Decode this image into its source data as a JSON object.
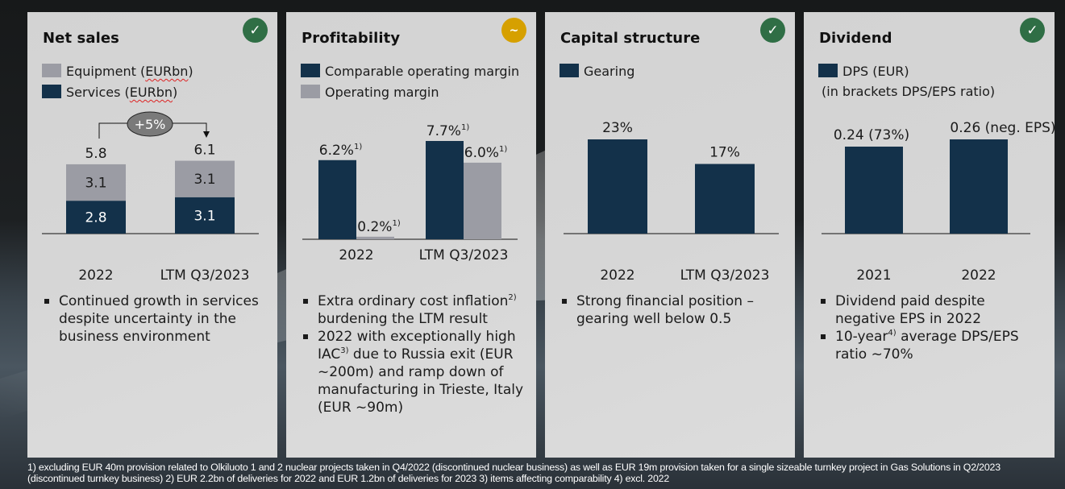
{
  "colors": {
    "dark_navy": "#13314a",
    "grey": "#9b9ca4",
    "status_ok": "#2f6e45",
    "status_warn": "#d6a000"
  },
  "panels": {
    "net_sales": {
      "title": "Net sales",
      "status": {
        "icon": "check-icon",
        "glyph": "✓"
      },
      "legend": [
        {
          "label_pre": "Equipment (",
          "label_sq": "EURbn",
          "label_post": ")",
          "swatch": "grey"
        },
        {
          "label_pre": "Services (",
          "label_sq": "EURbn",
          "label_post": ")",
          "swatch": "dark"
        }
      ],
      "growth_label": "+5%",
      "bullets": [
        "Continued growth in services despite uncertainty in the business environment"
      ]
    },
    "profitability": {
      "title": "Profitability",
      "status": {
        "icon": "tilde-icon",
        "glyph": "~"
      },
      "legend": [
        {
          "label": "Comparable operating margin",
          "swatch": "dark"
        },
        {
          "label": "Operating margin",
          "swatch": "grey"
        }
      ],
      "bullets": [
        {
          "pre": "Extra ordinary cost inflation",
          "sup": "2)",
          "post": " burdening the LTM result"
        },
        {
          "pre": "2022 with exceptionally high IAC",
          "sup": "3)",
          "post": " due to Russia exit (EUR ~200m) and ramp down of manufacturing in Trieste, Italy (EUR ~90m)"
        }
      ]
    },
    "capital_structure": {
      "title": "Capital structure",
      "status": {
        "icon": "check-icon",
        "glyph": "✓"
      },
      "legend": [
        {
          "label": "Gearing",
          "swatch": "dark"
        }
      ],
      "bullets": [
        "Strong financial position – gearing well below 0.5"
      ]
    },
    "dividend": {
      "title": "Dividend",
      "status": {
        "icon": "check-icon",
        "glyph": "✓"
      },
      "legend": [
        {
          "label": "DPS (EUR)",
          "swatch": "dark"
        }
      ],
      "note": "(in brackets DPS/EPS ratio)",
      "bullets": [
        {
          "pre": "Dividend paid despite negative EPS in 2022",
          "sup": "",
          "post": ""
        },
        {
          "pre": "10-year",
          "sup": "4)",
          "post": " average DPS/EPS ratio ~70%"
        }
      ]
    }
  },
  "footnote": "1) excluding EUR 40m provision related to Olkiluoto 1 and 2 nuclear projects taken in Q4/2022 (discontinued nuclear business) as well as EUR 19m provision taken for a single sizeable turnkey project in Gas Solutions in Q2/2023 (discontinued turnkey business) 2) EUR 2.2bn of deliveries for 2022 and EUR 1.2bn of deliveries for 2023 3) items affecting comparability 4) excl. 2022",
  "chart_data": [
    {
      "type": "bar",
      "stacked": true,
      "title": "Net sales",
      "categories": [
        "2022",
        "LTM Q3/2023"
      ],
      "series": [
        {
          "name": "Services (EURbn)",
          "values": [
            2.8,
            3.1
          ],
          "color": "#13314a"
        },
        {
          "name": "Equipment (EURbn)",
          "values": [
            3.1,
            3.1
          ],
          "color": "#9b9ca4"
        }
      ],
      "totals": [
        "5.8",
        "6.1"
      ],
      "segment_labels": [
        [
          "2.8",
          "3.1"
        ],
        [
          "3.1",
          "3.1"
        ]
      ],
      "annotation": "+5%",
      "ylim": [
        0,
        6.1
      ]
    },
    {
      "type": "bar",
      "title": "Profitability",
      "categories": [
        "2022",
        "LTM Q3/2023"
      ],
      "series": [
        {
          "name": "Comparable operating margin",
          "values": [
            6.2,
            7.7
          ],
          "labels": [
            "6.2%",
            "7.7%"
          ],
          "color": "#13314a"
        },
        {
          "name": "Operating margin",
          "values": [
            0.2,
            6.0
          ],
          "labels": [
            "0.2%",
            "6.0%"
          ],
          "color": "#9b9ca4"
        }
      ],
      "label_footnote": "1)",
      "ylim": [
        0,
        7.7
      ]
    },
    {
      "type": "bar",
      "title": "Capital structure",
      "categories": [
        "2022",
        "LTM Q3/2023"
      ],
      "series": [
        {
          "name": "Gearing",
          "values": [
            23,
            17
          ],
          "labels": [
            "23%",
            "17%"
          ],
          "color": "#13314a"
        }
      ],
      "ylim": [
        0,
        23
      ]
    },
    {
      "type": "bar",
      "title": "Dividend",
      "categories": [
        "2021",
        "2022"
      ],
      "series": [
        {
          "name": "DPS (EUR)",
          "values": [
            0.24,
            0.26
          ],
          "labels": [
            "0.24 (73%)",
            "0.26 (neg. EPS)"
          ],
          "color": "#13314a"
        }
      ],
      "ylim": [
        0,
        0.26
      ]
    }
  ]
}
